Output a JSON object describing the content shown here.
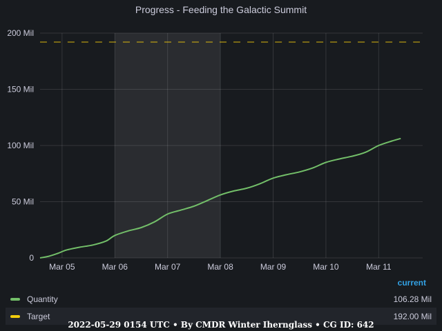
{
  "chart_data": {
    "type": "line",
    "title": "Progress - Feeding the Galactic Summit",
    "x_ticks": [
      "Mar 05",
      "Mar 06",
      "Mar 07",
      "Mar 08",
      "Mar 09",
      "Mar 10",
      "Mar 11"
    ],
    "y_ticks": [
      "0",
      "50 Mil",
      "100 Mil",
      "150 Mil",
      "200 Mil"
    ],
    "ylim": [
      0,
      200
    ],
    "y_unit": "Mil",
    "xlim": [
      "2022-03-04T14:00",
      "2022-03-11T20:00"
    ],
    "highlight_region": [
      "2022-03-06T00:00",
      "2022-03-08T00:00"
    ],
    "grid": true,
    "legend_placement": "bottom",
    "series": [
      {
        "name": "Quantity",
        "color": "#73bf69",
        "style": "solid",
        "points": [
          [
            "2022-03-04T14:00",
            0
          ],
          [
            "2022-03-04T18:00",
            1.5
          ],
          [
            "2022-03-04T22:00",
            4
          ],
          [
            "2022-03-05T02:00",
            7
          ],
          [
            "2022-03-05T08:00",
            9.5
          ],
          [
            "2022-03-05T14:00",
            11.5
          ],
          [
            "2022-03-05T20:00",
            15
          ],
          [
            "2022-03-06T00:00",
            20
          ],
          [
            "2022-03-06T06:00",
            24
          ],
          [
            "2022-03-06T12:00",
            27
          ],
          [
            "2022-03-06T18:00",
            32
          ],
          [
            "2022-03-07T00:00",
            39
          ],
          [
            "2022-03-07T06:00",
            42.5
          ],
          [
            "2022-03-07T12:00",
            46
          ],
          [
            "2022-03-07T18:00",
            51
          ],
          [
            "2022-03-08T00:00",
            56
          ],
          [
            "2022-03-08T06:00",
            59.5
          ],
          [
            "2022-03-08T12:00",
            62
          ],
          [
            "2022-03-08T18:00",
            66
          ],
          [
            "2022-03-09T00:00",
            71
          ],
          [
            "2022-03-09T06:00",
            74
          ],
          [
            "2022-03-09T12:00",
            76.5
          ],
          [
            "2022-03-09T18:00",
            80
          ],
          [
            "2022-03-10T00:00",
            85
          ],
          [
            "2022-03-10T06:00",
            88
          ],
          [
            "2022-03-10T12:00",
            90.5
          ],
          [
            "2022-03-10T18:00",
            94
          ],
          [
            "2022-03-11T00:00",
            100
          ],
          [
            "2022-03-11T06:00",
            104
          ],
          [
            "2022-03-11T10:00",
            106.28
          ]
        ]
      },
      {
        "name": "Target",
        "color": "#f2cc0c",
        "style": "dashed",
        "points": [
          [
            "2022-03-04T14:00",
            192
          ],
          [
            "2022-03-11T20:00",
            192
          ]
        ]
      }
    ]
  },
  "legend": {
    "header": "current",
    "items": [
      {
        "name": "Quantity",
        "value": "106.28 Mil",
        "color": "#73bf69"
      },
      {
        "name": "Target",
        "value": "192.00 Mil",
        "color": "#f2cc0c"
      }
    ]
  },
  "footer": "2022-05-29 0154 UTC • By CMDR Winter Iherngl‌ass • CG ID: 642"
}
